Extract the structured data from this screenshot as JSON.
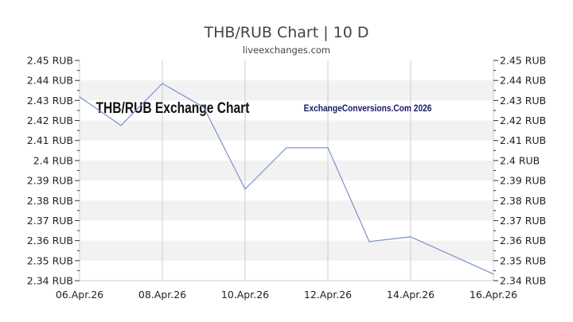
{
  "chart_data": {
    "type": "line",
    "title": "THB/RUB Chart | 10 D",
    "subtitle": "liveexchanges.com",
    "watermarks": [
      "THB/RUB Exchange Chart",
      "ExchangeConversions.Com 2026"
    ],
    "x": [
      "06.Apr.26",
      "07.Apr.26",
      "08.Apr.26",
      "09.Apr.26",
      "10.Apr.26",
      "11.Apr.26",
      "12.Apr.26",
      "13.Apr.26",
      "14.Apr.26",
      "16.Apr.26"
    ],
    "xticks": [
      "06.Apr.26",
      "08.Apr.26",
      "10.Apr.26",
      "12.Apr.26",
      "14.Apr.26",
      "16.Apr.26"
    ],
    "series": [
      {
        "values": [
          2.4318,
          2.4175,
          2.4385,
          2.4266,
          2.3857,
          2.4064,
          2.4064,
          2.3595,
          2.3619,
          2.3433
        ]
      }
    ],
    "yticks": [
      "2.45 RUB",
      "2.44 RUB",
      "2.43 RUB",
      "2.42 RUB",
      "2.41 RUB",
      "2.4 RUB",
      "2.39 RUB",
      "2.38 RUB",
      "2.37 RUB",
      "2.36 RUB",
      "2.35 RUB",
      "2.34 RUB"
    ],
    "ylim": [
      2.34,
      2.45
    ],
    "grid": true,
    "line_color": "#7b8fd0",
    "band_color": "#f2f2f2"
  }
}
